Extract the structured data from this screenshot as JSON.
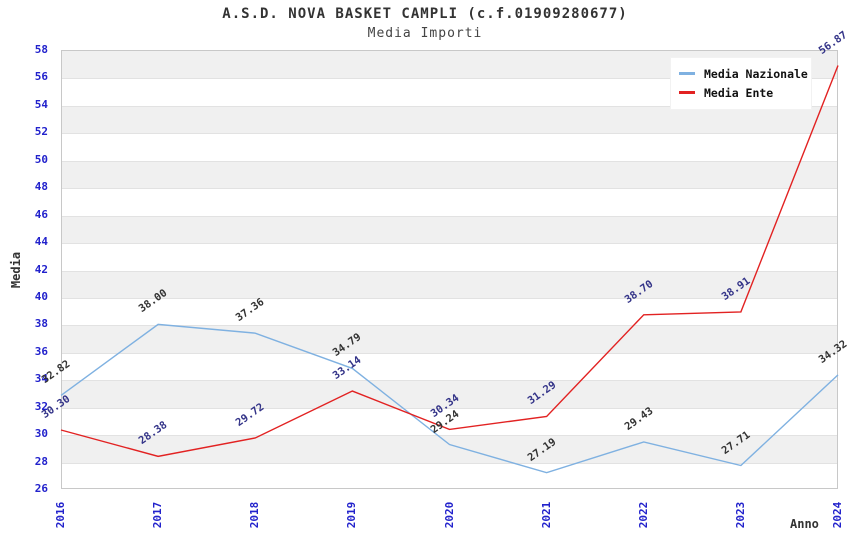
{
  "title": "A.S.D. NOVA BASKET CAMPLI (c.f.01909280677)",
  "subtitle": "Media Importi",
  "colors": {
    "axis_tick": "#2222cc",
    "text_dark": "#333333",
    "band_gray": "#f0f0f0",
    "plot_border": "#c8c8c8",
    "nazionale_line": "#7fb1e1",
    "ente_line": "#e22222",
    "nazionale_label": "#333333",
    "ente_label": "#333388"
  },
  "chart_data": {
    "type": "line",
    "x": [
      2016,
      2017,
      2018,
      2019,
      2020,
      2021,
      2022,
      2023,
      2024
    ],
    "xlabel": "Anno",
    "ylabel": "Media",
    "ylim": [
      26,
      58
    ],
    "ytick_step": 2,
    "grid": "alternating-horizontal-bands",
    "legend_position": "top-right",
    "series": [
      {
        "name": "Media Nazionale",
        "color": "#7fb1e1",
        "label_color": "#333333",
        "values": [
          32.82,
          38.0,
          37.36,
          34.79,
          29.24,
          27.19,
          29.43,
          27.71,
          34.32
        ]
      },
      {
        "name": "Media Ente",
        "color": "#e22222",
        "label_color": "#333388",
        "values": [
          30.3,
          28.38,
          29.72,
          33.14,
          30.34,
          31.29,
          38.7,
          38.91,
          56.87
        ]
      }
    ]
  }
}
